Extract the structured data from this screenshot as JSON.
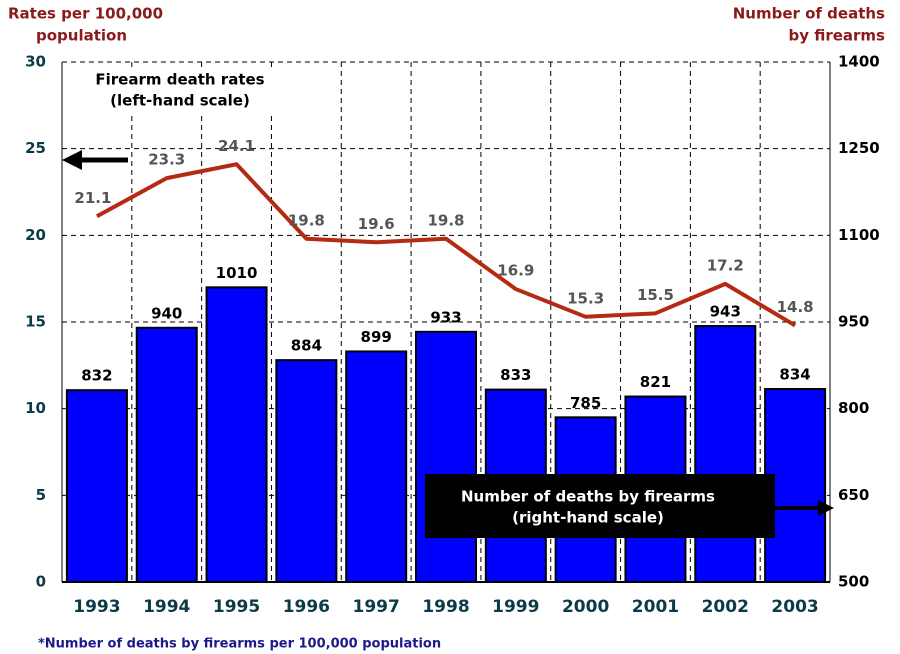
{
  "chart_data": {
    "type": "bar",
    "ylabel": [
      "Rates per 100,000",
      "population"
    ],
    "y2label": [
      "Number of deaths",
      "by firearms"
    ],
    "categories": [
      "1993",
      "1994",
      "1995",
      "1996",
      "1997",
      "1998",
      "1999",
      "2000",
      "2001",
      "2002",
      "2003"
    ],
    "series": [
      {
        "name": "Number of deaths by firearms",
        "type": "bar",
        "axis": "y2",
        "color": "#0000ff",
        "values": [
          832,
          940,
          1010,
          884,
          899,
          933,
          833,
          785,
          821,
          943,
          834
        ]
      },
      {
        "name": "Firearm death rates",
        "type": "line",
        "axis": "y",
        "color": "#b52a12",
        "values": [
          21.1,
          23.3,
          24.1,
          19.8,
          19.6,
          19.8,
          16.9,
          15.3,
          15.5,
          17.2,
          14.8
        ]
      }
    ],
    "ylim": [
      0,
      30
    ],
    "yticks": [
      0,
      5,
      10,
      15,
      20,
      25,
      30
    ],
    "y2lim": [
      500,
      1400
    ],
    "y2ticks": [
      500,
      650,
      800,
      950,
      1100,
      1250,
      1400
    ],
    "grid": true,
    "annotations": [
      {
        "lines": [
          "Firearm death rates",
          "(left-hand scale)"
        ]
      },
      {
        "lines": [
          "Number of  deaths by firearms",
          "(right-hand scale)"
        ]
      }
    ],
    "footnote": "*Number of deaths by firearms per 100,000 population"
  }
}
